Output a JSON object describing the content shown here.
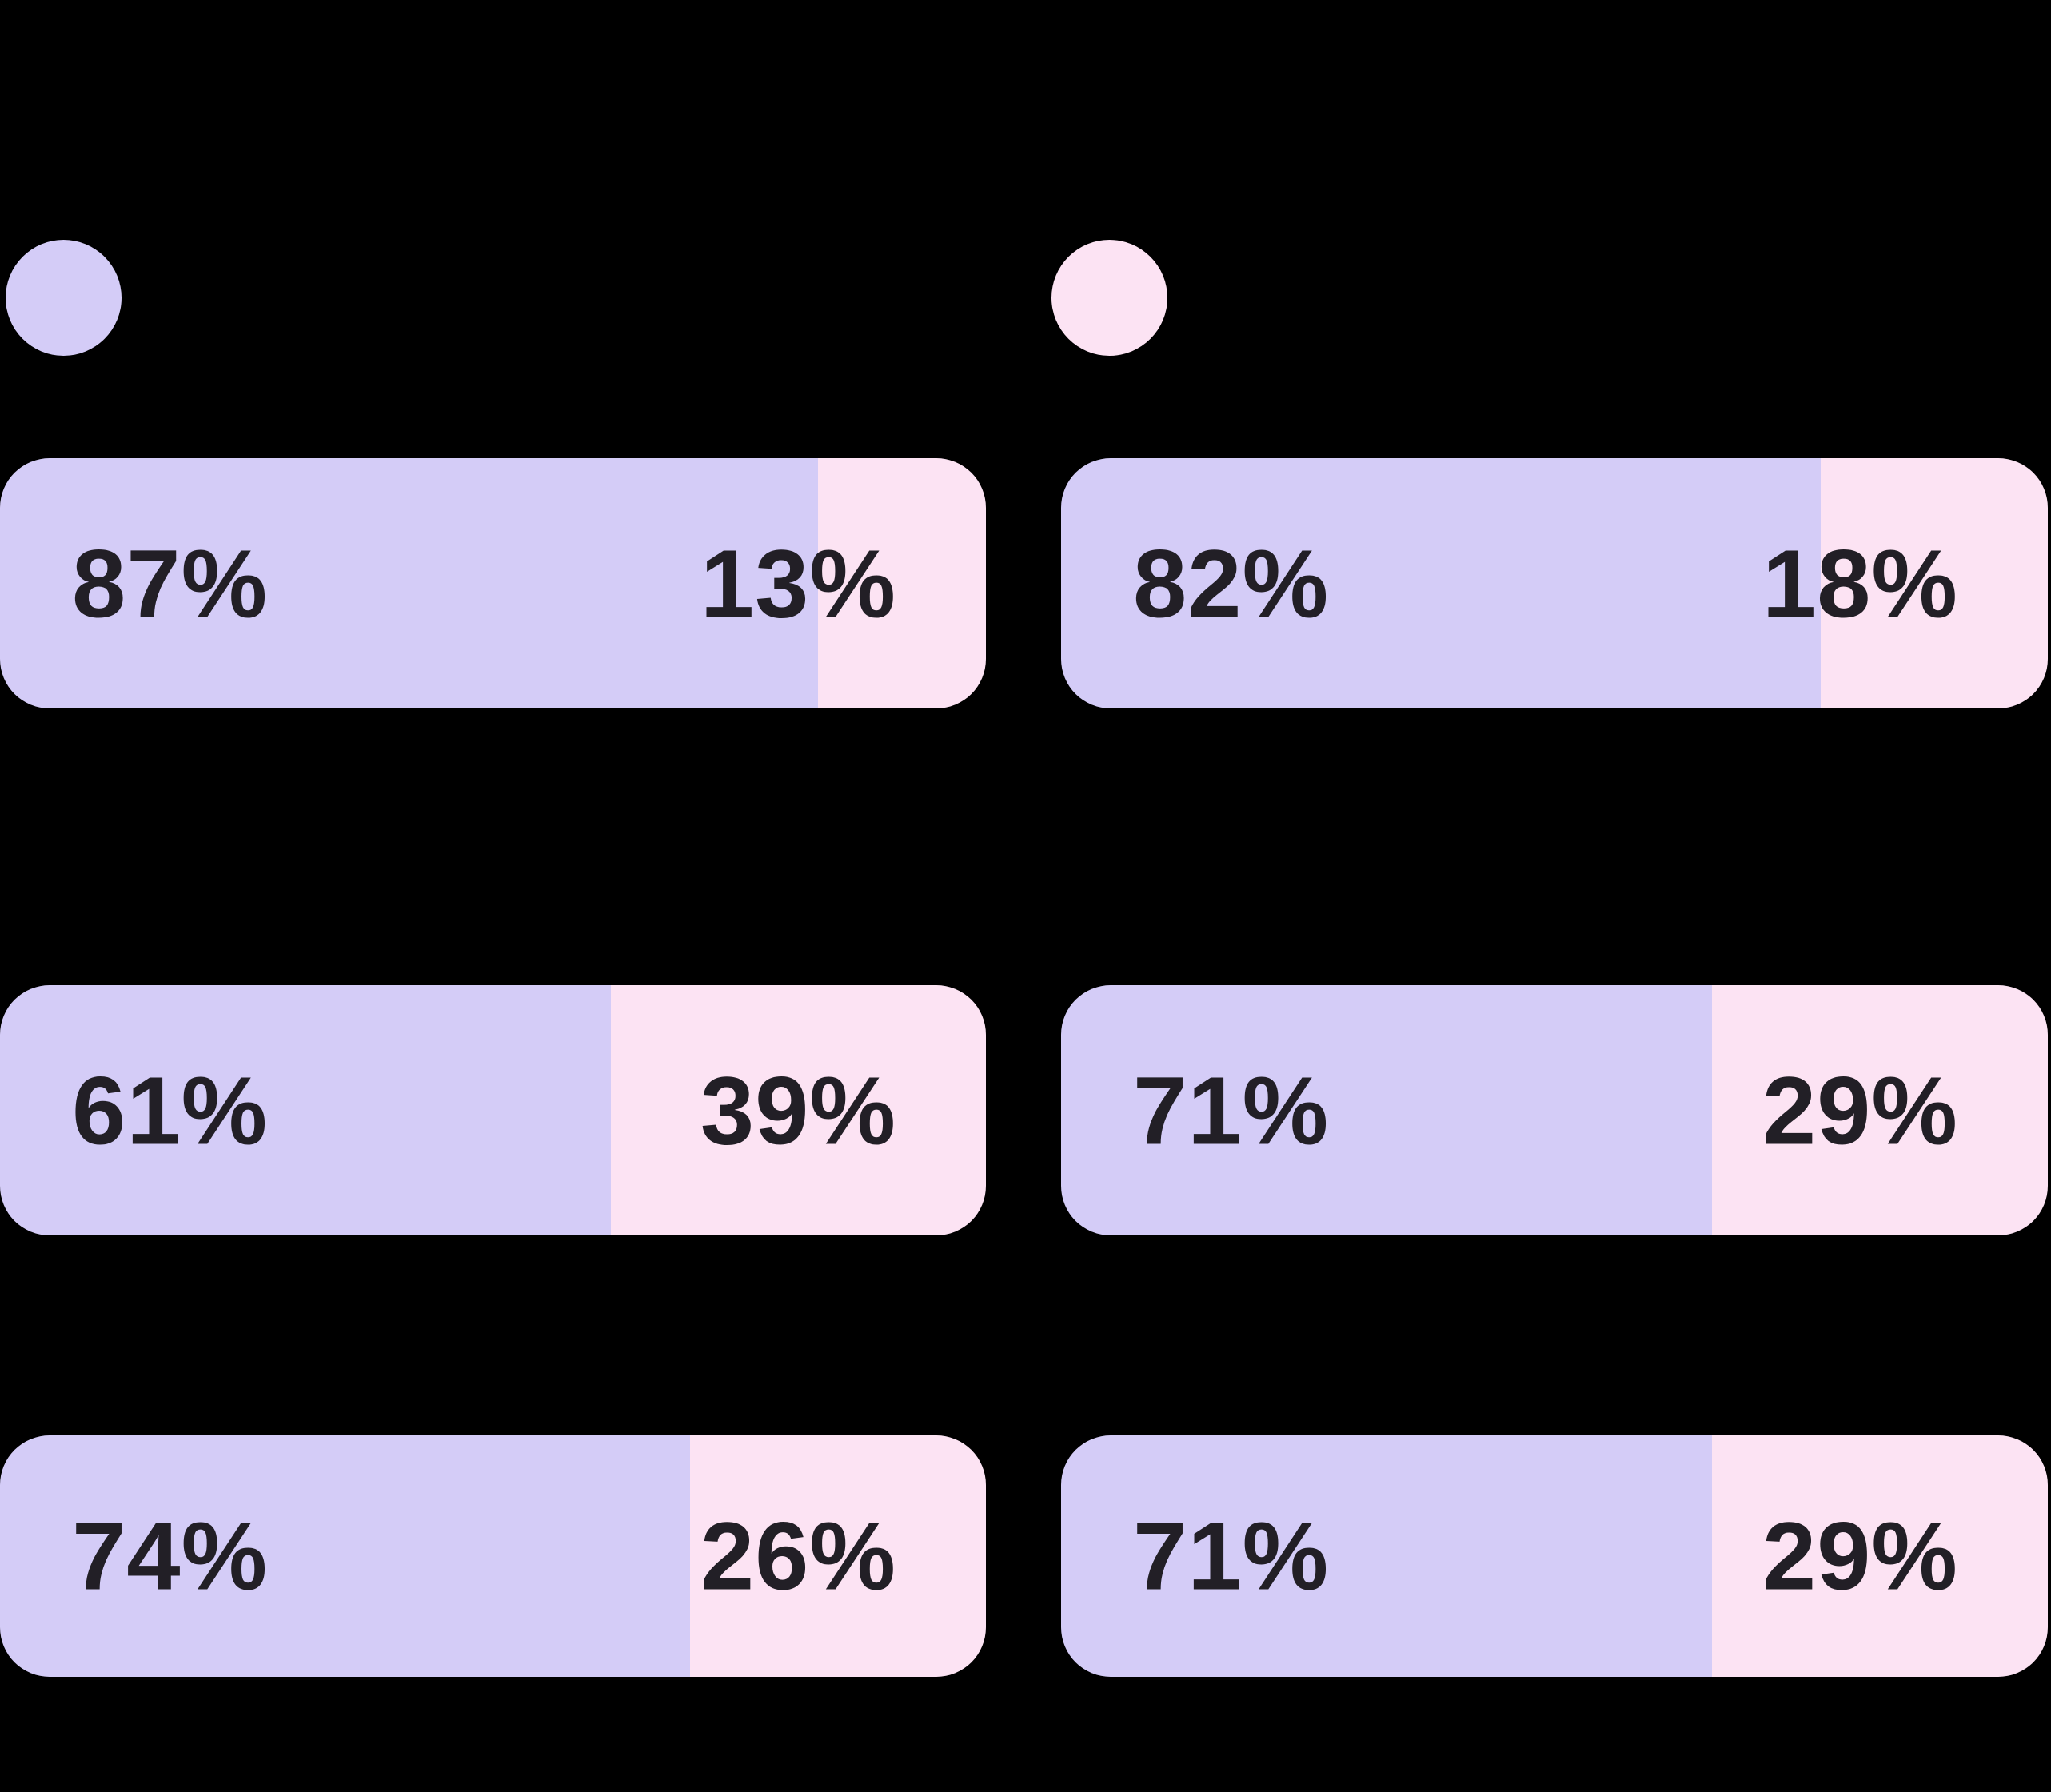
{
  "colors": {
    "background": "#000000",
    "primary_series": "#d4ccf7",
    "secondary_series": "#fce3f3",
    "label_text": "#221f26"
  },
  "legend": {
    "position": "top",
    "items": [
      {
        "swatch": "primary-purple-dot",
        "swatch_color": "#d4ccf7"
      },
      {
        "swatch": "secondary-pink-dot",
        "swatch_color": "#fce3f3"
      }
    ]
  },
  "chart_data": {
    "type": "bar",
    "orientation": "horizontal",
    "subtype": "paired 100% stacked percentage bars, 2 columns x 3 rows",
    "unit": "%",
    "grid": false,
    "legend_position": "top-left and top-center",
    "series": [
      {
        "name": "primary",
        "color": "#d4ccf7",
        "values": [
          87,
          82,
          61,
          71,
          74,
          71
        ]
      },
      {
        "name": "secondary",
        "color": "#fce3f3",
        "values": [
          13,
          18,
          39,
          29,
          26,
          29
        ]
      }
    ],
    "bars": [
      {
        "position": "row1-left",
        "primary": 87,
        "secondary": 13,
        "primary_label": "87%",
        "secondary_label": "13%",
        "fill_pct": 83
      },
      {
        "position": "row1-right",
        "primary": 82,
        "secondary": 18,
        "primary_label": "82%",
        "secondary_label": "18%",
        "fill_pct": 77
      },
      {
        "position": "row2-left",
        "primary": 61,
        "secondary": 39,
        "primary_label": "61%",
        "secondary_label": "39%",
        "fill_pct": 62
      },
      {
        "position": "row2-right",
        "primary": 71,
        "secondary": 29,
        "primary_label": "71%",
        "secondary_label": "29%",
        "fill_pct": 66
      },
      {
        "position": "row3-left",
        "primary": 74,
        "secondary": 26,
        "primary_label": "74%",
        "secondary_label": "26%",
        "fill_pct": 70
      },
      {
        "position": "row3-right",
        "primary": 71,
        "secondary": 29,
        "primary_label": "71%",
        "secondary_label": "29%",
        "fill_pct": 66
      }
    ]
  }
}
